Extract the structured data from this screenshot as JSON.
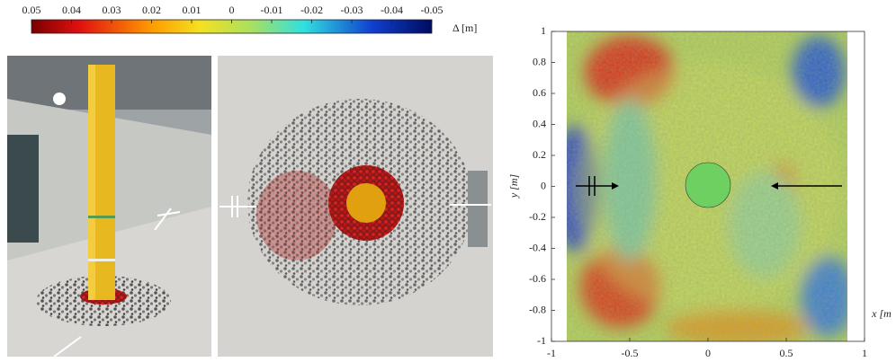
{
  "chart_data": {
    "type": "heatmap",
    "colorbar": {
      "label": "Δ [m]",
      "lim": [
        0.05,
        -0.05
      ],
      "ticks": [
        0.05,
        0.04,
        0.03,
        0.02,
        0.01,
        0,
        -0.01,
        -0.02,
        -0.03,
        -0.04,
        -0.05
      ]
    },
    "xlabel": "x [m",
    "ylabel": "y [m]",
    "xlim": [
      -1,
      1
    ],
    "ylim": [
      -1,
      1
    ],
    "xticks": [
      -1,
      -0.5,
      0,
      0.5,
      1
    ],
    "yticks": [
      -1,
      -0.8,
      -0.6,
      -0.4,
      -0.2,
      0,
      0.2,
      0.4,
      0.6,
      0.8,
      1
    ]
  }
}
